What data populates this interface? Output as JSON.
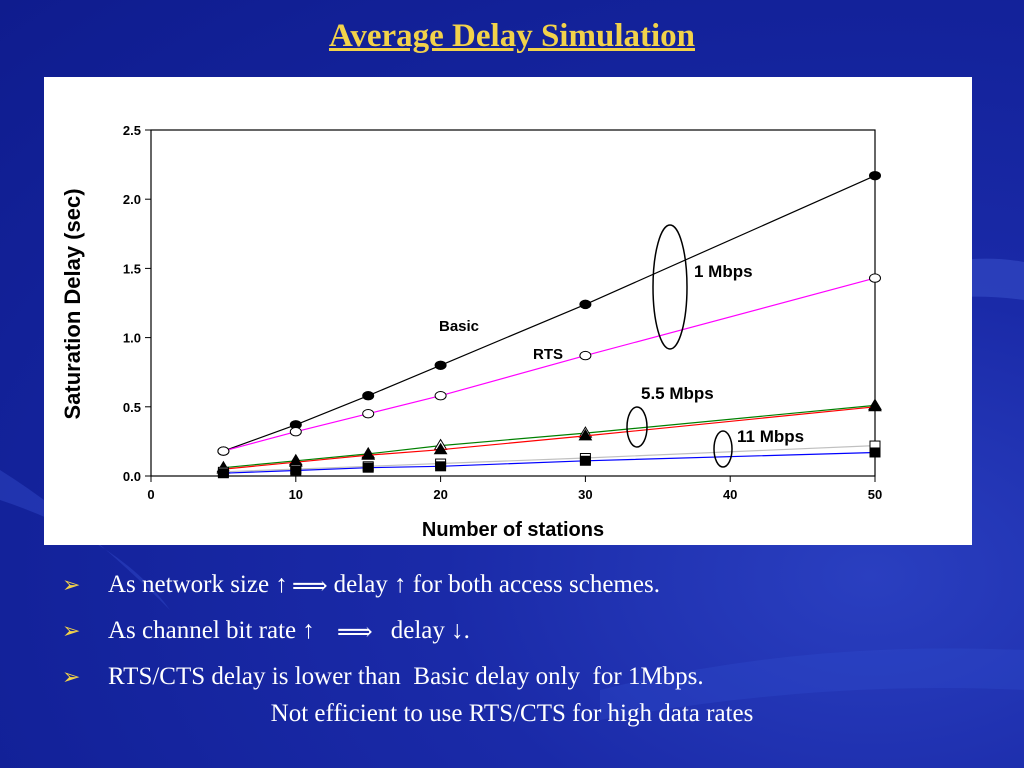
{
  "slide": {
    "title": "Average Delay Simulation",
    "bullet_marker": "➢",
    "bullets": [
      {
        "before": "As network size ↑",
        "arrow": "⟹",
        "after": "delay ↑ for both access schemes."
      },
      {
        "before": "As channel bit rate ↑",
        "arrow": "⟹",
        "after": "delay ↓."
      },
      {
        "text": "RTS/CTS delay is lower than  Basic delay only  for 1Mbps."
      }
    ],
    "note": "Not efficient to use RTS/CTS for high data rates"
  },
  "colors": {
    "title": "#f2d24a",
    "basic_1mbps": "#000000",
    "rts_1mbps": "#ff00ff",
    "basic_5_5mbps": "#008000",
    "rts_5_5mbps": "#ff0000",
    "basic_11mbps": "#c0c0c0",
    "rts_11mbps": "#0000ff"
  },
  "chart_data": {
    "type": "line",
    "xlabel": "Number of stations",
    "ylabel": "Saturation Delay (sec)",
    "xlim": [
      0,
      50
    ],
    "ylim": [
      0,
      2.5
    ],
    "xticks": [
      0,
      10,
      20,
      30,
      40,
      50
    ],
    "yticks": [
      "0.0",
      "0.5",
      "1.0",
      "1.5",
      "2.0",
      "2.5"
    ],
    "x": [
      5,
      10,
      15,
      20,
      30,
      50
    ],
    "series": [
      {
        "name": "Basic",
        "group": "1 Mbps",
        "color": "#000000",
        "marker": "circle-filled",
        "values": [
          0.18,
          0.37,
          0.58,
          0.8,
          1.24,
          2.17
        ]
      },
      {
        "name": "RTS",
        "group": "1 Mbps",
        "color": "#ff00ff",
        "marker": "circle-open",
        "values": [
          0.18,
          0.32,
          0.45,
          0.58,
          0.87,
          1.43
        ]
      },
      {
        "group": "5.5 Mbps",
        "color": "#008000",
        "marker": "triangle-open",
        "values": [
          0.06,
          0.11,
          0.16,
          0.22,
          0.31,
          0.51
        ]
      },
      {
        "group": "5.5 Mbps",
        "color": "#ff0000",
        "marker": "triangle-filled",
        "values": [
          0.05,
          0.1,
          0.15,
          0.19,
          0.29,
          0.5
        ]
      },
      {
        "group": "11 Mbps",
        "color": "#c0c0c0",
        "marker": "square-open",
        "values": [
          0.03,
          0.05,
          0.07,
          0.09,
          0.13,
          0.22
        ]
      },
      {
        "group": "11 Mbps",
        "color": "#0000ff",
        "marker": "square-filled",
        "values": [
          0.02,
          0.04,
          0.06,
          0.07,
          0.11,
          0.17
        ]
      }
    ],
    "annotations": [
      "1 Mbps",
      "5.5 Mbps",
      "11 Mbps",
      "Basic",
      "RTS"
    ],
    "grid": false,
    "legend": "none"
  }
}
